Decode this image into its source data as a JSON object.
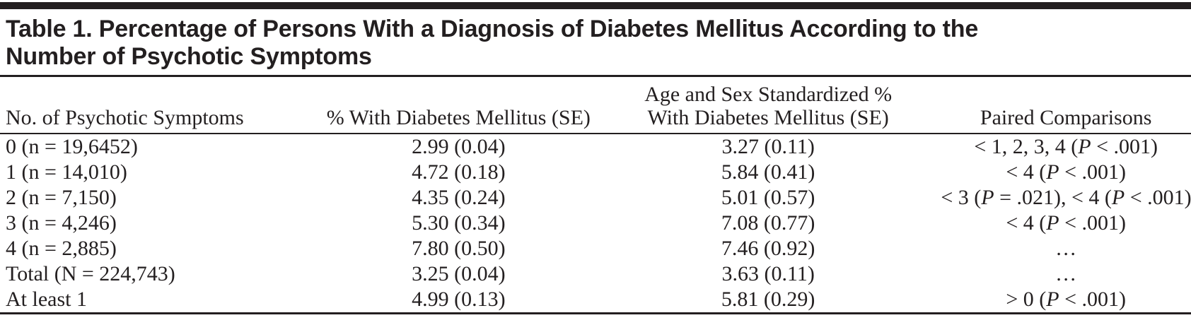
{
  "page": {
    "title": "Table 1. Percentage of Persons With a Diagnosis of Diabetes Mellitus According to the Number of Psychotic Symptoms"
  },
  "table": {
    "columns": [
      "No. of Psychotic Symptoms",
      "% With Diabetes Mellitus (SE)",
      "Age and Sex Standardized %\nWith Diabetes Mellitus (SE)",
      "Paired Comparisons"
    ],
    "rows": [
      [
        "0 (n = 19,6452)",
        "2.99 (0.04)",
        "3.27 (0.11)",
        "< 1, 2, 3, 4 (P < .001)"
      ],
      [
        "1 (n = 14,010)",
        "4.72 (0.18)",
        "5.84 (0.41)",
        "< 4 (P < .001)"
      ],
      [
        "2 (n = 7,150)",
        "4.35 (0.24)",
        "5.01 (0.57)",
        "< 3 (P = .021), < 4 (P < .001)"
      ],
      [
        "3 (n = 4,246)",
        "5.30 (0.34)",
        "7.08 (0.77)",
        "< 4 (P < .001)"
      ],
      [
        "4 (n = 2,885)",
        "7.80 (0.50)",
        "7.46 (0.92)",
        "…"
      ],
      [
        "Total (N = 224,743)",
        "3.25 (0.04)",
        "3.63 (0.11)",
        "…"
      ],
      [
        "At least 1",
        "4.99 (0.13)",
        "5.81 (0.29)",
        "> 0 (P < .001)"
      ]
    ],
    "colors": {
      "text": "#231f20",
      "rule": "#231f20",
      "background": "#ffffff"
    }
  }
}
